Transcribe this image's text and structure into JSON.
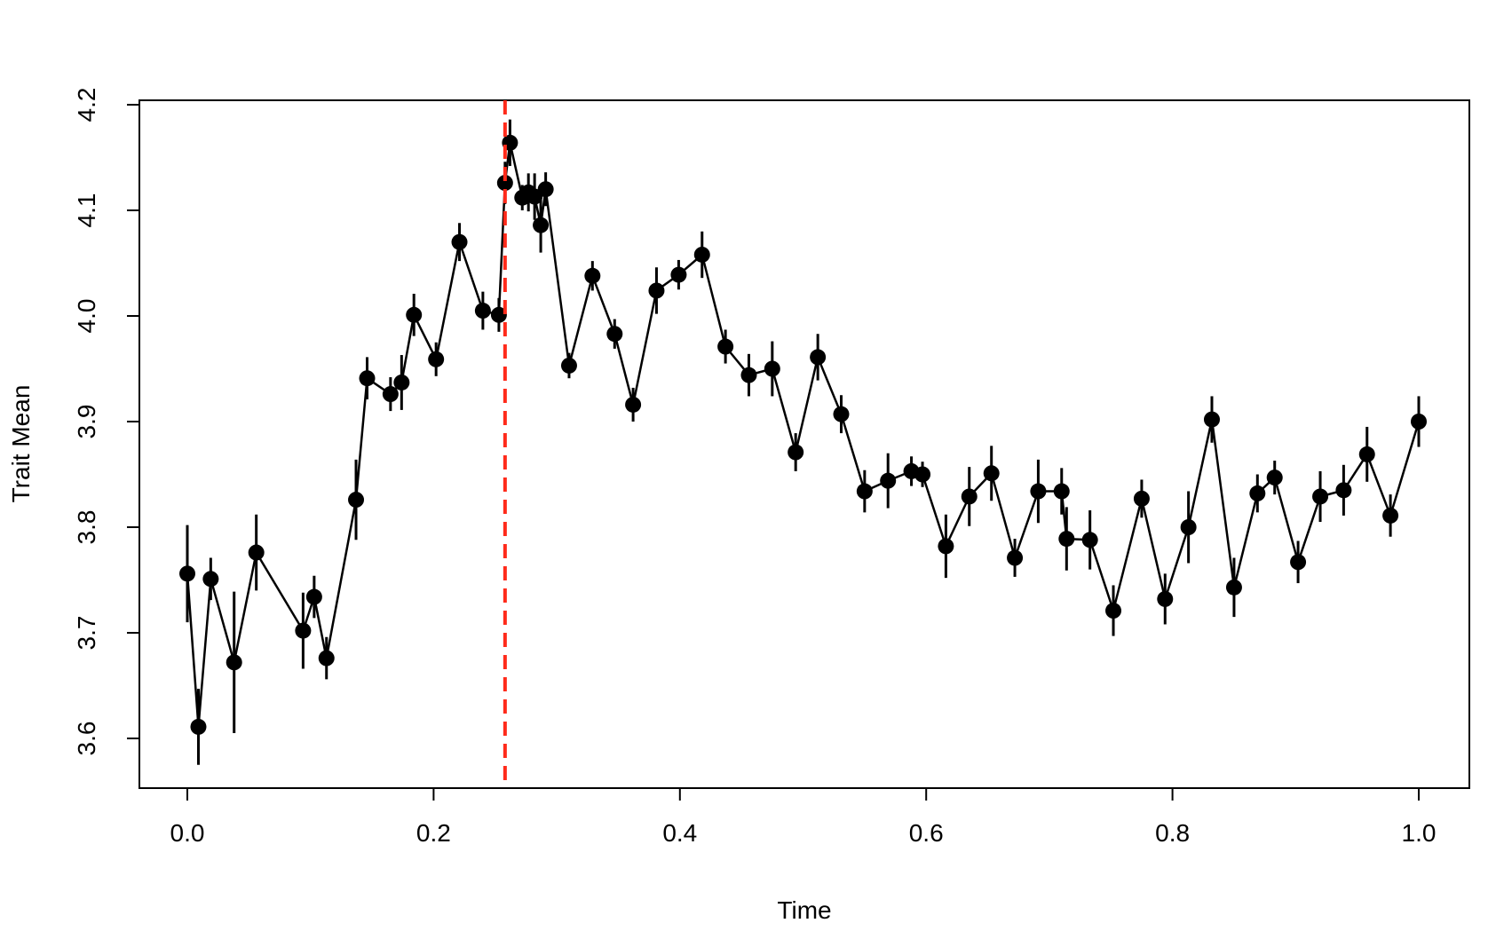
{
  "chart_data": {
    "type": "line",
    "title": "",
    "xlabel": "Time",
    "ylabel": "Trait Mean",
    "xlim": [
      -0.04,
      1.04
    ],
    "ylim": [
      3.545,
      4.21
    ],
    "x_ticks": [
      0.0,
      0.2,
      0.4,
      0.6,
      0.8,
      1.0
    ],
    "x_tick_labels": [
      "0.0",
      "0.2",
      "0.4",
      "0.6",
      "0.8",
      "1.0"
    ],
    "y_ticks": [
      3.6,
      3.7,
      3.8,
      3.9,
      4.0,
      4.1,
      4.2
    ],
    "y_tick_labels": [
      "3.6",
      "3.7",
      "3.8",
      "3.9",
      "4.0",
      "4.1",
      "4.2"
    ],
    "grid": false,
    "legend": "none",
    "line_color": "#000000",
    "marker": "filled-circle",
    "vline": {
      "x": 0.258,
      "color": "#ff2a1a",
      "style": "dashed"
    },
    "series": [
      {
        "x": [
          0.0,
          0.009,
          0.019,
          0.038,
          0.056,
          0.094,
          0.103,
          0.113,
          0.137,
          0.146,
          0.165,
          0.174,
          0.184,
          0.202,
          0.221,
          0.24,
          0.253,
          0.258,
          0.262,
          0.272,
          0.277,
          0.282,
          0.287,
          0.291,
          0.31,
          0.329,
          0.347,
          0.362,
          0.381,
          0.399,
          0.418,
          0.437,
          0.456,
          0.475,
          0.494,
          0.512,
          0.531,
          0.55,
          0.569,
          0.588,
          0.597,
          0.616,
          0.635,
          0.653,
          0.672,
          0.691,
          0.71,
          0.714,
          0.733,
          0.752,
          0.775,
          0.794,
          0.813,
          0.832,
          0.85,
          0.869,
          0.883,
          0.902,
          0.92,
          0.939,
          0.958,
          0.977,
          1.0
        ],
        "y": [
          3.756,
          3.611,
          3.751,
          3.672,
          3.776,
          3.702,
          3.734,
          3.676,
          3.826,
          3.941,
          3.926,
          3.937,
          4.001,
          3.959,
          4.07,
          4.005,
          4.001,
          4.126,
          4.164,
          4.112,
          4.117,
          4.113,
          4.086,
          4.12,
          3.953,
          4.038,
          3.983,
          3.916,
          4.024,
          4.039,
          4.058,
          3.971,
          3.944,
          3.95,
          3.871,
          3.961,
          3.907,
          3.834,
          3.844,
          3.853,
          3.85,
          3.782,
          3.829,
          3.851,
          3.771,
          3.834,
          3.834,
          3.789,
          3.788,
          3.721,
          3.827,
          3.732,
          3.8,
          3.902,
          3.743,
          3.832,
          3.847,
          3.767,
          3.829,
          3.835,
          3.869,
          3.811,
          3.9
        ],
        "error": [
          0.046,
          0.036,
          0.02,
          0.067,
          0.036,
          0.036,
          0.02,
          0.02,
          0.038,
          0.02,
          0.016,
          0.026,
          0.02,
          0.016,
          0.018,
          0.018,
          0.016,
          0.02,
          0.022,
          0.012,
          0.018,
          0.022,
          0.026,
          0.016,
          0.012,
          0.014,
          0.014,
          0.016,
          0.022,
          0.014,
          0.022,
          0.016,
          0.02,
          0.026,
          0.018,
          0.022,
          0.018,
          0.02,
          0.026,
          0.014,
          0.012,
          0.03,
          0.028,
          0.026,
          0.018,
          0.03,
          0.022,
          0.03,
          0.028,
          0.024,
          0.018,
          0.024,
          0.034,
          0.022,
          0.028,
          0.018,
          0.016,
          0.02,
          0.024,
          0.024,
          0.026,
          0.02,
          0.024
        ]
      }
    ]
  }
}
